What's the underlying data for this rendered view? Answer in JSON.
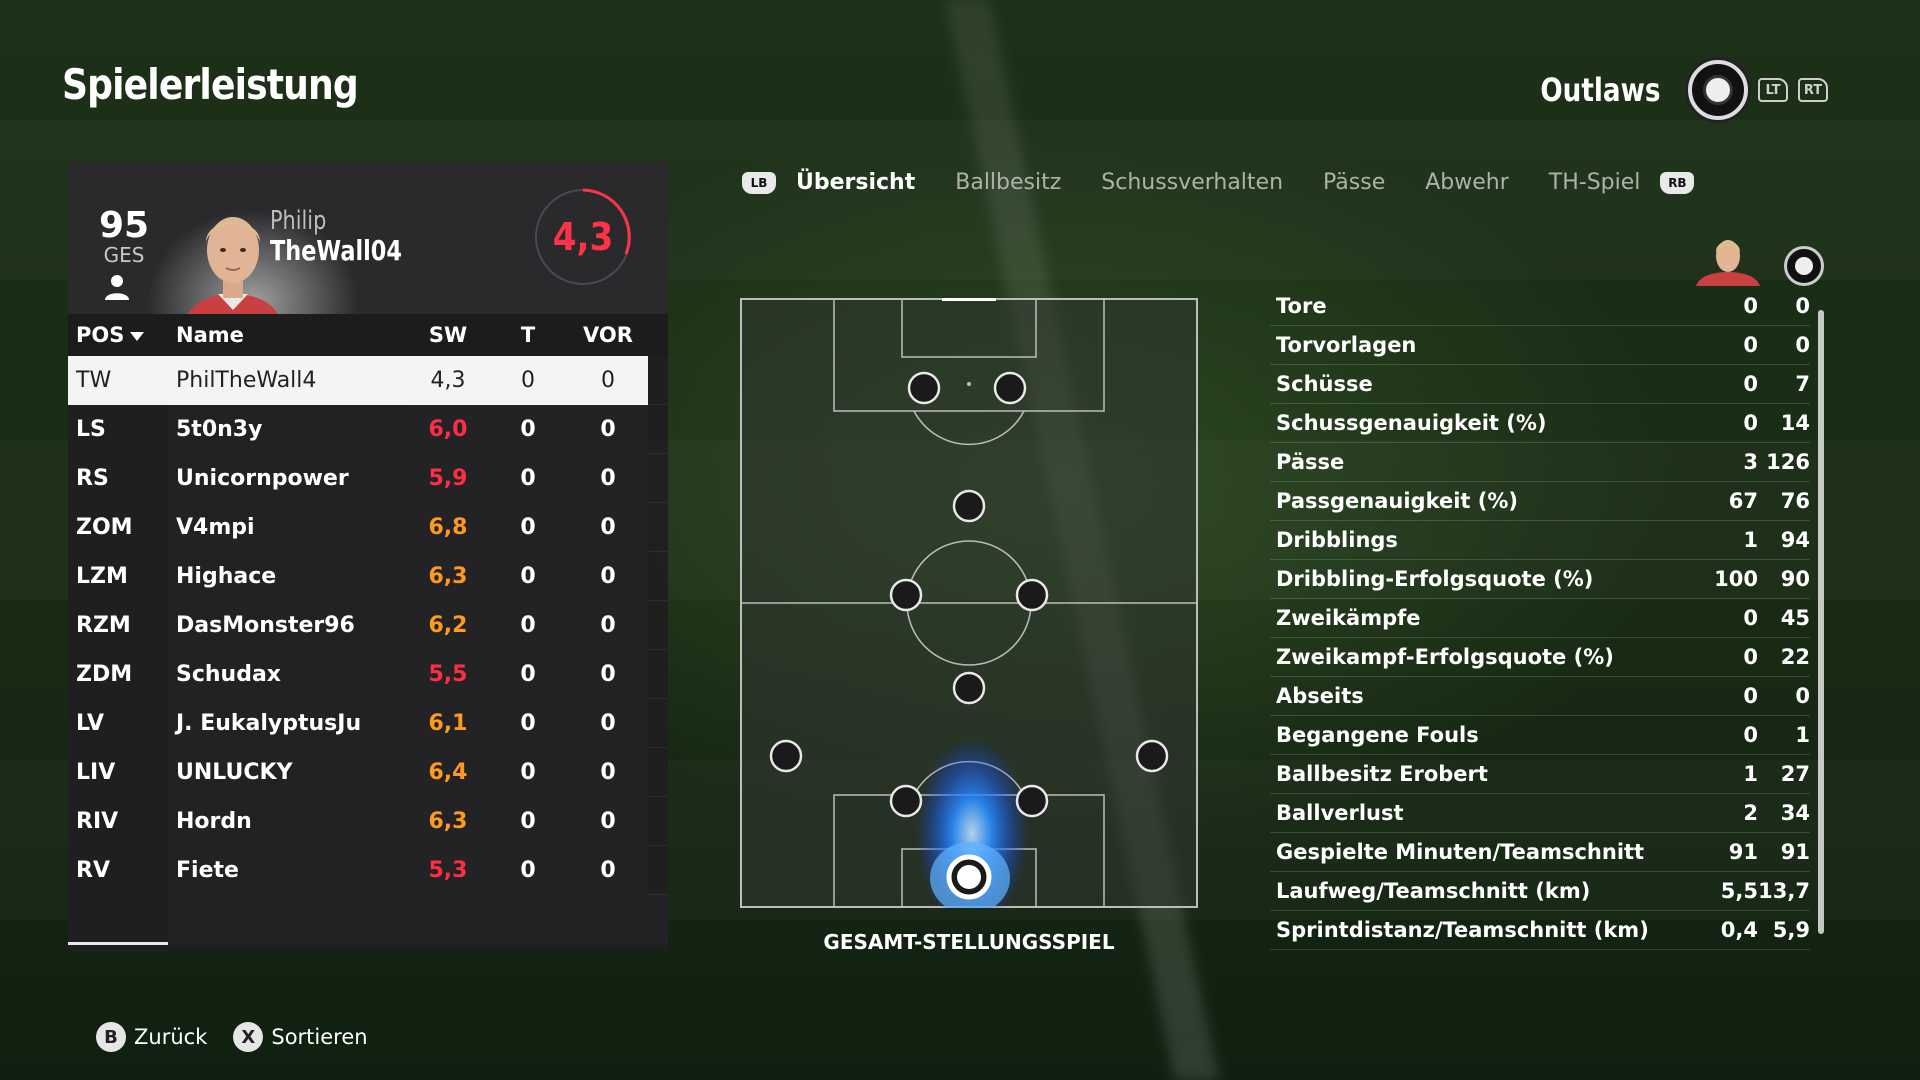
{
  "page_title": "Spielerleistung",
  "team": {
    "name": "Outlaws",
    "lt": "LT",
    "rt": "RT"
  },
  "player": {
    "overall": "95",
    "overall_label": "GES",
    "first_name": "Philip",
    "gamer_tag": "TheWall04",
    "rating": "4,3"
  },
  "table": {
    "headers": {
      "pos": "POS",
      "name": "Name",
      "sw": "SW",
      "t": "T",
      "vor": "VOR"
    },
    "rows": [
      {
        "pos": "TW",
        "name": "PhilTheWall4",
        "sw": "4,3",
        "t": "0",
        "vor": "0",
        "sw_color": "#222222",
        "selected": true
      },
      {
        "pos": "LS",
        "name": "5t0n3y",
        "sw": "6,0",
        "t": "0",
        "vor": "0",
        "sw_color": "#ff2e43"
      },
      {
        "pos": "RS",
        "name": "Unicornpower",
        "sw": "5,9",
        "t": "0",
        "vor": "0",
        "sw_color": "#ff2e43"
      },
      {
        "pos": "ZOM",
        "name": "V4mpi",
        "sw": "6,8",
        "t": "0",
        "vor": "0",
        "sw_color": "#ff9a1f"
      },
      {
        "pos": "LZM",
        "name": "Highace",
        "sw": "6,3",
        "t": "0",
        "vor": "0",
        "sw_color": "#ff9a1f"
      },
      {
        "pos": "RZM",
        "name": "DasMonster96",
        "sw": "6,2",
        "t": "0",
        "vor": "0",
        "sw_color": "#ff9a1f"
      },
      {
        "pos": "ZDM",
        "name": "Schudax",
        "sw": "5,5",
        "t": "0",
        "vor": "0",
        "sw_color": "#ff2e43"
      },
      {
        "pos": "LV",
        "name": "J. EukalyptusJu",
        "sw": "6,1",
        "t": "0",
        "vor": "0",
        "sw_color": "#ff9a1f"
      },
      {
        "pos": "LIV",
        "name": "UNLUCKY",
        "sw": "6,4",
        "t": "0",
        "vor": "0",
        "sw_color": "#ff9a1f"
      },
      {
        "pos": "RIV",
        "name": "Hordn",
        "sw": "6,3",
        "t": "0",
        "vor": "0",
        "sw_color": "#ff9a1f"
      },
      {
        "pos": "RV",
        "name": "Fiete",
        "sw": "5,3",
        "t": "0",
        "vor": "0",
        "sw_color": "#ff2e43"
      }
    ]
  },
  "tabs": {
    "lb": "LB",
    "rb": "RB",
    "items": [
      "Übersicht",
      "Ballbesitz",
      "Schussverhalten",
      "Pässe",
      "Abwehr",
      "TH-Spiel"
    ]
  },
  "pitch": {
    "label": "GESAMT-STELLUNGSSPIEL"
  },
  "stats": [
    {
      "label": "Tore",
      "player": "0",
      "team": "0"
    },
    {
      "label": "Torvorlagen",
      "player": "0",
      "team": "0"
    },
    {
      "label": "Schüsse",
      "player": "0",
      "team": "7"
    },
    {
      "label": "Schussgenauigkeit (%)",
      "player": "0",
      "team": "14"
    },
    {
      "label": "Pässe",
      "player": "3",
      "team": "126"
    },
    {
      "label": "Passgenauigkeit (%)",
      "player": "67",
      "team": "76"
    },
    {
      "label": "Dribblings",
      "player": "1",
      "team": "94"
    },
    {
      "label": "Dribbling-Erfolgsquote (%)",
      "player": "100",
      "team": "90"
    },
    {
      "label": "Zweikämpfe",
      "player": "0",
      "team": "45"
    },
    {
      "label": "Zweikampf-Erfolgsquote (%)",
      "player": "0",
      "team": "22"
    },
    {
      "label": "Abseits",
      "player": "0",
      "team": "0"
    },
    {
      "label": "Begangene Fouls",
      "player": "0",
      "team": "1"
    },
    {
      "label": "Ballbesitz Erobert",
      "player": "1",
      "team": "27"
    },
    {
      "label": "Ballverlust",
      "player": "2",
      "team": "34"
    },
    {
      "label": "Gespielte Minuten/Teamschnitt",
      "player": "91",
      "team": "91"
    },
    {
      "label": "Laufweg/Teamschnitt (km)",
      "player": "5,5",
      "team": "13,7"
    },
    {
      "label": "Sprintdistanz/Teamschnitt (km)",
      "player": "0,4",
      "team": "5,9"
    }
  ],
  "footer": {
    "back_glyph": "B",
    "back_label": "Zurück",
    "sort_glyph": "X",
    "sort_label": "Sortieren"
  },
  "colors": {
    "rating_red": "#ff3347",
    "accent_orange": "#ff9a1f",
    "heat_blue": "#2a8cff"
  }
}
